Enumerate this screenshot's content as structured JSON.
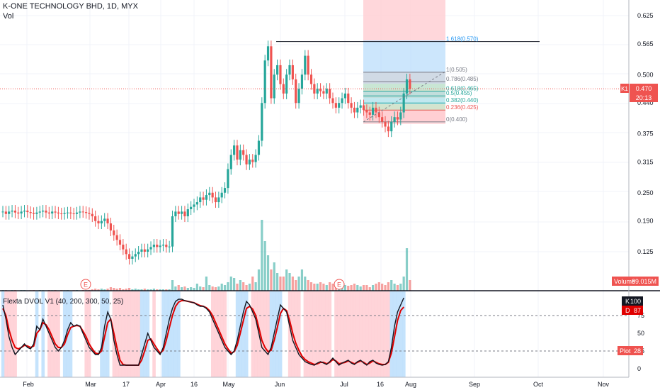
{
  "header": {
    "title": "K-ONE TECHNOLOGY BHD, 1D, MYX",
    "volume_label": "Vol"
  },
  "indicator": {
    "title": "Flexta DVOL V1 (40, 200, 300, 50, 25)"
  },
  "badges": {
    "last_prefix": "K1",
    "last_value": "0.470",
    "countdown": "20:13",
    "volume": "Volume",
    "volume_value": "89.015M",
    "k_label": "K",
    "k_value": "100",
    "d_label": "D",
    "d_value": "87",
    "plot_label": "Plot",
    "plot_value": "28"
  },
  "colors": {
    "up": "#26a69a",
    "down": "#ef5350",
    "k_line": "#131722",
    "d_line": "#e00000",
    "zone_blue": "#bbdefb",
    "zone_red": "#ffcdd2"
  },
  "chart_data": {
    "type": "candlestick",
    "title": "K-ONE TECHNOLOGY BHD, 1D, MYX",
    "y_ticks": [
      "0.625",
      "0.565",
      "0.500",
      "0.440",
      "0.375",
      "0.315",
      "0.250",
      "0.190",
      "0.125"
    ],
    "ylim": [
      0.1,
      0.645
    ],
    "x_ticks": [
      "Feb",
      "Mar",
      "17",
      "Apr",
      "16",
      "May",
      "Jun",
      "Jul",
      "16",
      "Aug",
      "Sep",
      "Oct",
      "Nov"
    ],
    "earnings_markers": [
      "E",
      "E"
    ],
    "last_price": 0.47,
    "fib_levels": [
      {
        "label": "1.618(0.570)",
        "value": 0.57
      },
      {
        "label": "1(0.505)",
        "value": 0.505
      },
      {
        "label": "0.786(0.485)",
        "value": 0.485
      },
      {
        "label": "0.618(0.465)",
        "value": 0.465
      },
      {
        "label": "0.5(0.455)",
        "value": 0.455
      },
      {
        "label": "0.382(0.440)",
        "value": 0.44
      },
      {
        "label": "0.236(0.425)",
        "value": 0.425
      },
      {
        "label": "0(0.400)",
        "value": 0.4
      }
    ],
    "closes": [
      0.21,
      0.205,
      0.21,
      0.212,
      0.208,
      0.206,
      0.21,
      0.212,
      0.209,
      0.207,
      0.205,
      0.208,
      0.21,
      0.212,
      0.208,
      0.206,
      0.21,
      0.208,
      0.206,
      0.205,
      0.207,
      0.208,
      0.206,
      0.205,
      0.208,
      0.21,
      0.209,
      0.207,
      0.205,
      0.2,
      0.19,
      0.185,
      0.19,
      0.195,
      0.185,
      0.17,
      0.16,
      0.15,
      0.14,
      0.13,
      0.12,
      0.11,
      0.115,
      0.12,
      0.125,
      0.13,
      0.125,
      0.13,
      0.135,
      0.14,
      0.135,
      0.138,
      0.14,
      0.135,
      0.136,
      0.2,
      0.21,
      0.205,
      0.21,
      0.2,
      0.215,
      0.22,
      0.225,
      0.23,
      0.24,
      0.235,
      0.245,
      0.25,
      0.24,
      0.23,
      0.24,
      0.25,
      0.26,
      0.3,
      0.33,
      0.35,
      0.32,
      0.34,
      0.33,
      0.31,
      0.32,
      0.315,
      0.33,
      0.36,
      0.44,
      0.53,
      0.56,
      0.45,
      0.5,
      0.52,
      0.48,
      0.46,
      0.5,
      0.52,
      0.49,
      0.44,
      0.47,
      0.5,
      0.54,
      0.5,
      0.48,
      0.46,
      0.47,
      0.465,
      0.46,
      0.47,
      0.45,
      0.44,
      0.43,
      0.44,
      0.45,
      0.46,
      0.44,
      0.43,
      0.42,
      0.43,
      0.435,
      0.425,
      0.42,
      0.415,
      0.43,
      0.42,
      0.41,
      0.4,
      0.39,
      0.38,
      0.4,
      0.41,
      0.405,
      0.42,
      0.46,
      0.49,
      0.47
    ],
    "volumes": [
      0.01,
      0.01,
      0.005,
      0.01,
      0.01,
      0.005,
      0.01,
      0.01,
      0.005,
      0.008,
      0.01,
      0.005,
      0.01,
      0.008,
      0.005,
      0.01,
      0.008,
      0.01,
      0.005,
      0.01,
      0.008,
      0.01,
      0.005,
      0.008,
      0.01,
      0.005,
      0.01,
      0.008,
      0.01,
      0.02,
      0.03,
      0.02,
      0.03,
      0.02,
      0.03,
      0.05,
      0.04,
      0.03,
      0.04,
      0.02,
      0.03,
      0.04,
      0.02,
      0.03,
      0.02,
      0.02,
      0.03,
      0.02,
      0.02,
      0.03,
      0.02,
      0.02,
      0.02,
      0.02,
      0.02,
      0.15,
      0.06,
      0.08,
      0.05,
      0.06,
      0.04,
      0.05,
      0.04,
      0.1,
      0.06,
      0.05,
      0.2,
      0.08,
      0.06,
      0.05,
      0.06,
      0.1,
      0.08,
      0.12,
      0.2,
      0.18,
      0.1,
      0.15,
      0.12,
      0.08,
      0.1,
      0.2,
      0.12,
      0.3,
      1.0,
      0.7,
      0.5,
      0.3,
      0.4,
      0.25,
      0.2,
      0.2,
      0.3,
      0.25,
      0.2,
      0.15,
      0.2,
      0.3,
      0.2,
      0.15,
      0.12,
      0.1,
      0.1,
      0.12,
      0.1,
      0.08,
      0.12,
      0.1,
      0.08,
      0.1,
      0.12,
      0.08,
      0.07,
      0.08,
      0.1,
      0.08,
      0.06,
      0.08,
      0.08,
      0.05,
      0.08,
      0.1,
      0.12,
      0.1,
      0.08,
      0.12,
      0.15,
      0.1,
      0.08,
      0.1,
      0.2,
      0.6,
      0.15
    ],
    "indicator_levels": [
      0,
      25,
      50,
      75,
      100
    ],
    "indicator_k": [
      90,
      70,
      45,
      30,
      20,
      25,
      30,
      35,
      30,
      28,
      35,
      60,
      55,
      70,
      60,
      50,
      40,
      30,
      25,
      30,
      40,
      55,
      65,
      60,
      62,
      60,
      50,
      40,
      30,
      25,
      20,
      20,
      30,
      60,
      80,
      70,
      40,
      20,
      5,
      5,
      5,
      5,
      5,
      5,
      5,
      20,
      35,
      50,
      40,
      30,
      25,
      20,
      30,
      50,
      70,
      85,
      95,
      98,
      98,
      96,
      95,
      94,
      93,
      90,
      88,
      88,
      85,
      80,
      70,
      60,
      50,
      40,
      30,
      25,
      20,
      25,
      40,
      60,
      80,
      95,
      90,
      80,
      70,
      50,
      30,
      25,
      20,
      30,
      50,
      70,
      90,
      85,
      80,
      60,
      40,
      30,
      20,
      15,
      10,
      8,
      6,
      5,
      8,
      10,
      8,
      6,
      10,
      15,
      10,
      5,
      8,
      10,
      12,
      8,
      6,
      10,
      12,
      8,
      5,
      10,
      12,
      8,
      6,
      5,
      6,
      10,
      30,
      60,
      80,
      90,
      100
    ],
    "indicator_d": [
      85,
      75,
      55,
      40,
      30,
      28,
      30,
      33,
      32,
      30,
      32,
      50,
      55,
      65,
      62,
      55,
      45,
      35,
      30,
      30,
      35,
      48,
      58,
      60,
      61,
      60,
      53,
      45,
      35,
      28,
      22,
      21,
      25,
      45,
      65,
      70,
      50,
      30,
      12,
      6,
      5,
      5,
      5,
      5,
      5,
      12,
      25,
      40,
      42,
      35,
      28,
      22,
      26,
      40,
      58,
      75,
      88,
      94,
      96,
      96,
      95,
      94,
      93,
      91,
      89,
      88,
      86,
      82,
      75,
      65,
      55,
      45,
      35,
      28,
      22,
      24,
      33,
      50,
      68,
      85,
      88,
      84,
      75,
      58,
      40,
      30,
      24,
      26,
      40,
      58,
      78,
      85,
      82,
      68,
      50,
      36,
      26,
      18,
      13,
      10,
      8,
      6,
      7,
      9,
      9,
      7,
      9,
      13,
      11,
      7,
      8,
      9,
      11,
      9,
      7,
      9,
      11,
      9,
      6,
      8,
      11,
      9,
      7,
      6,
      6,
      9,
      22,
      45,
      68,
      82,
      87
    ]
  }
}
